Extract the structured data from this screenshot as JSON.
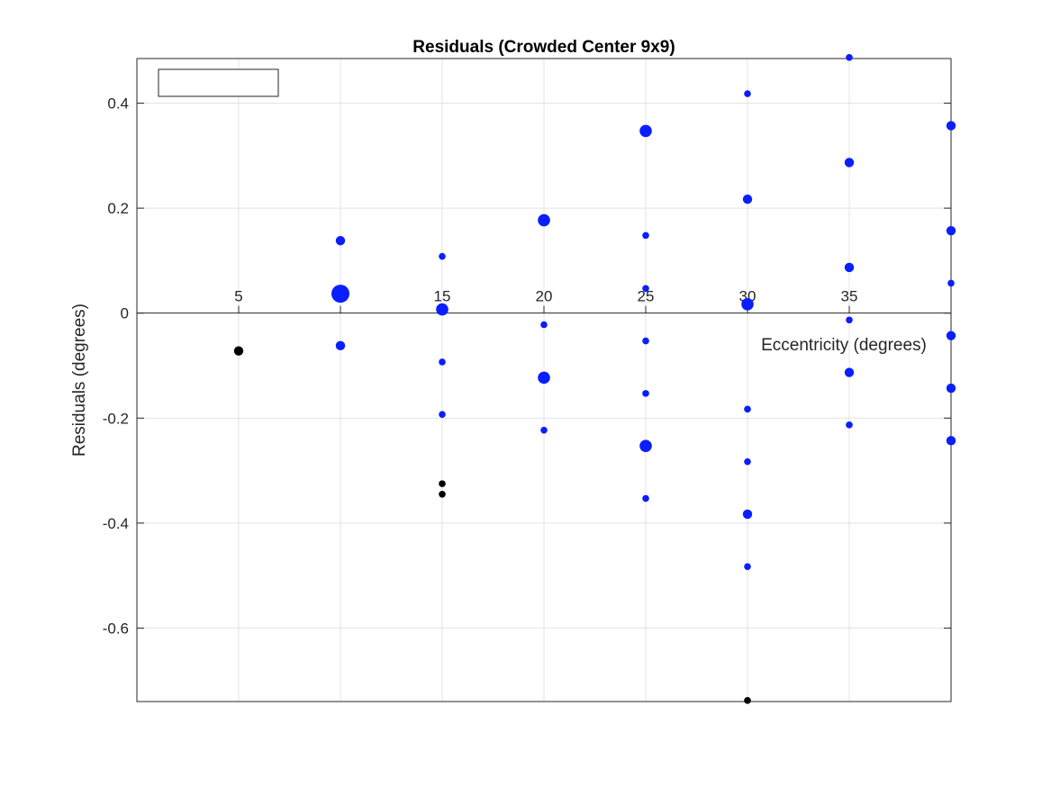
{
  "chart_data": {
    "type": "scatter",
    "title": "Residuals (Crowded Center 9x9)",
    "xlabel": "Eccentricity (degrees)",
    "ylabel": "Residuals (degrees)",
    "xlim": [
      0,
      40
    ],
    "ylim": [
      -0.74,
      0.485
    ],
    "x_ticks": [
      5,
      10,
      15,
      20,
      25,
      30,
      35
    ],
    "x_tick_labels": [
      "5",
      "",
      "15",
      "20",
      "25",
      "30",
      "35"
    ],
    "y_ticks": [
      -0.6,
      -0.4,
      -0.2,
      0,
      0.2,
      0.4
    ],
    "y_tick_labels": [
      "-0.6",
      "-0.4",
      "-0.2",
      "0",
      "0.2",
      "0.4"
    ],
    "x_axis_position": "origin",
    "grid": true,
    "legend": {
      "placement": "top-left",
      "entries": []
    },
    "colors": {
      "blue_series": "#0a1eff",
      "black_series": "#000000",
      "grid": "#e3e3e3",
      "axis": "#262626"
    },
    "series": [
      {
        "color": "blue",
        "points": [
          {
            "x": 10,
            "y": 0.138,
            "size": "small"
          },
          {
            "x": 10,
            "y": 0.037,
            "size": "large"
          },
          {
            "x": 10,
            "y": -0.062,
            "size": "small"
          },
          {
            "x": 15,
            "y": 0.108,
            "size": "tiny"
          },
          {
            "x": 15,
            "y": 0.007,
            "size": "medium"
          },
          {
            "x": 15,
            "y": -0.093,
            "size": "tiny"
          },
          {
            "x": 15,
            "y": -0.193,
            "size": "tiny"
          },
          {
            "x": 20,
            "y": 0.177,
            "size": "medium"
          },
          {
            "x": 20,
            "y": -0.022,
            "size": "tiny"
          },
          {
            "x": 20,
            "y": -0.123,
            "size": "medium"
          },
          {
            "x": 20,
            "y": -0.223,
            "size": "tiny"
          },
          {
            "x": 25,
            "y": 0.347,
            "size": "medium"
          },
          {
            "x": 25,
            "y": 0.148,
            "size": "tiny"
          },
          {
            "x": 25,
            "y": 0.047,
            "size": "tiny"
          },
          {
            "x": 25,
            "y": -0.053,
            "size": "tiny"
          },
          {
            "x": 25,
            "y": -0.153,
            "size": "tiny"
          },
          {
            "x": 25,
            "y": -0.253,
            "size": "medium"
          },
          {
            "x": 25,
            "y": -0.353,
            "size": "tiny"
          },
          {
            "x": 30,
            "y": 0.418,
            "size": "tiny"
          },
          {
            "x": 30,
            "y": 0.217,
            "size": "small"
          },
          {
            "x": 30,
            "y": 0.017,
            "size": "medium"
          },
          {
            "x": 30,
            "y": -0.183,
            "size": "tiny"
          },
          {
            "x": 30,
            "y": -0.283,
            "size": "tiny"
          },
          {
            "x": 30,
            "y": -0.383,
            "size": "small"
          },
          {
            "x": 30,
            "y": -0.483,
            "size": "tiny"
          },
          {
            "x": 35,
            "y": 0.487,
            "size": "tiny"
          },
          {
            "x": 35,
            "y": 0.287,
            "size": "small"
          },
          {
            "x": 35,
            "y": 0.087,
            "size": "small"
          },
          {
            "x": 35,
            "y": -0.013,
            "size": "tiny"
          },
          {
            "x": 35,
            "y": -0.113,
            "size": "small"
          },
          {
            "x": 35,
            "y": -0.213,
            "size": "tiny"
          },
          {
            "x": 40,
            "y": 0.357,
            "size": "small"
          },
          {
            "x": 40,
            "y": 0.157,
            "size": "small"
          },
          {
            "x": 40,
            "y": 0.057,
            "size": "tiny"
          },
          {
            "x": 40,
            "y": -0.043,
            "size": "small"
          },
          {
            "x": 40,
            "y": -0.143,
            "size": "small"
          },
          {
            "x": 40,
            "y": -0.243,
            "size": "small"
          }
        ]
      },
      {
        "color": "black",
        "points": [
          {
            "x": 5,
            "y": -0.072,
            "size": "small"
          },
          {
            "x": 15,
            "y": -0.325,
            "size": "tiny"
          },
          {
            "x": 15,
            "y": -0.345,
            "size": "tiny"
          },
          {
            "x": 30,
            "y": -0.738,
            "size": "tiny"
          }
        ]
      }
    ]
  }
}
